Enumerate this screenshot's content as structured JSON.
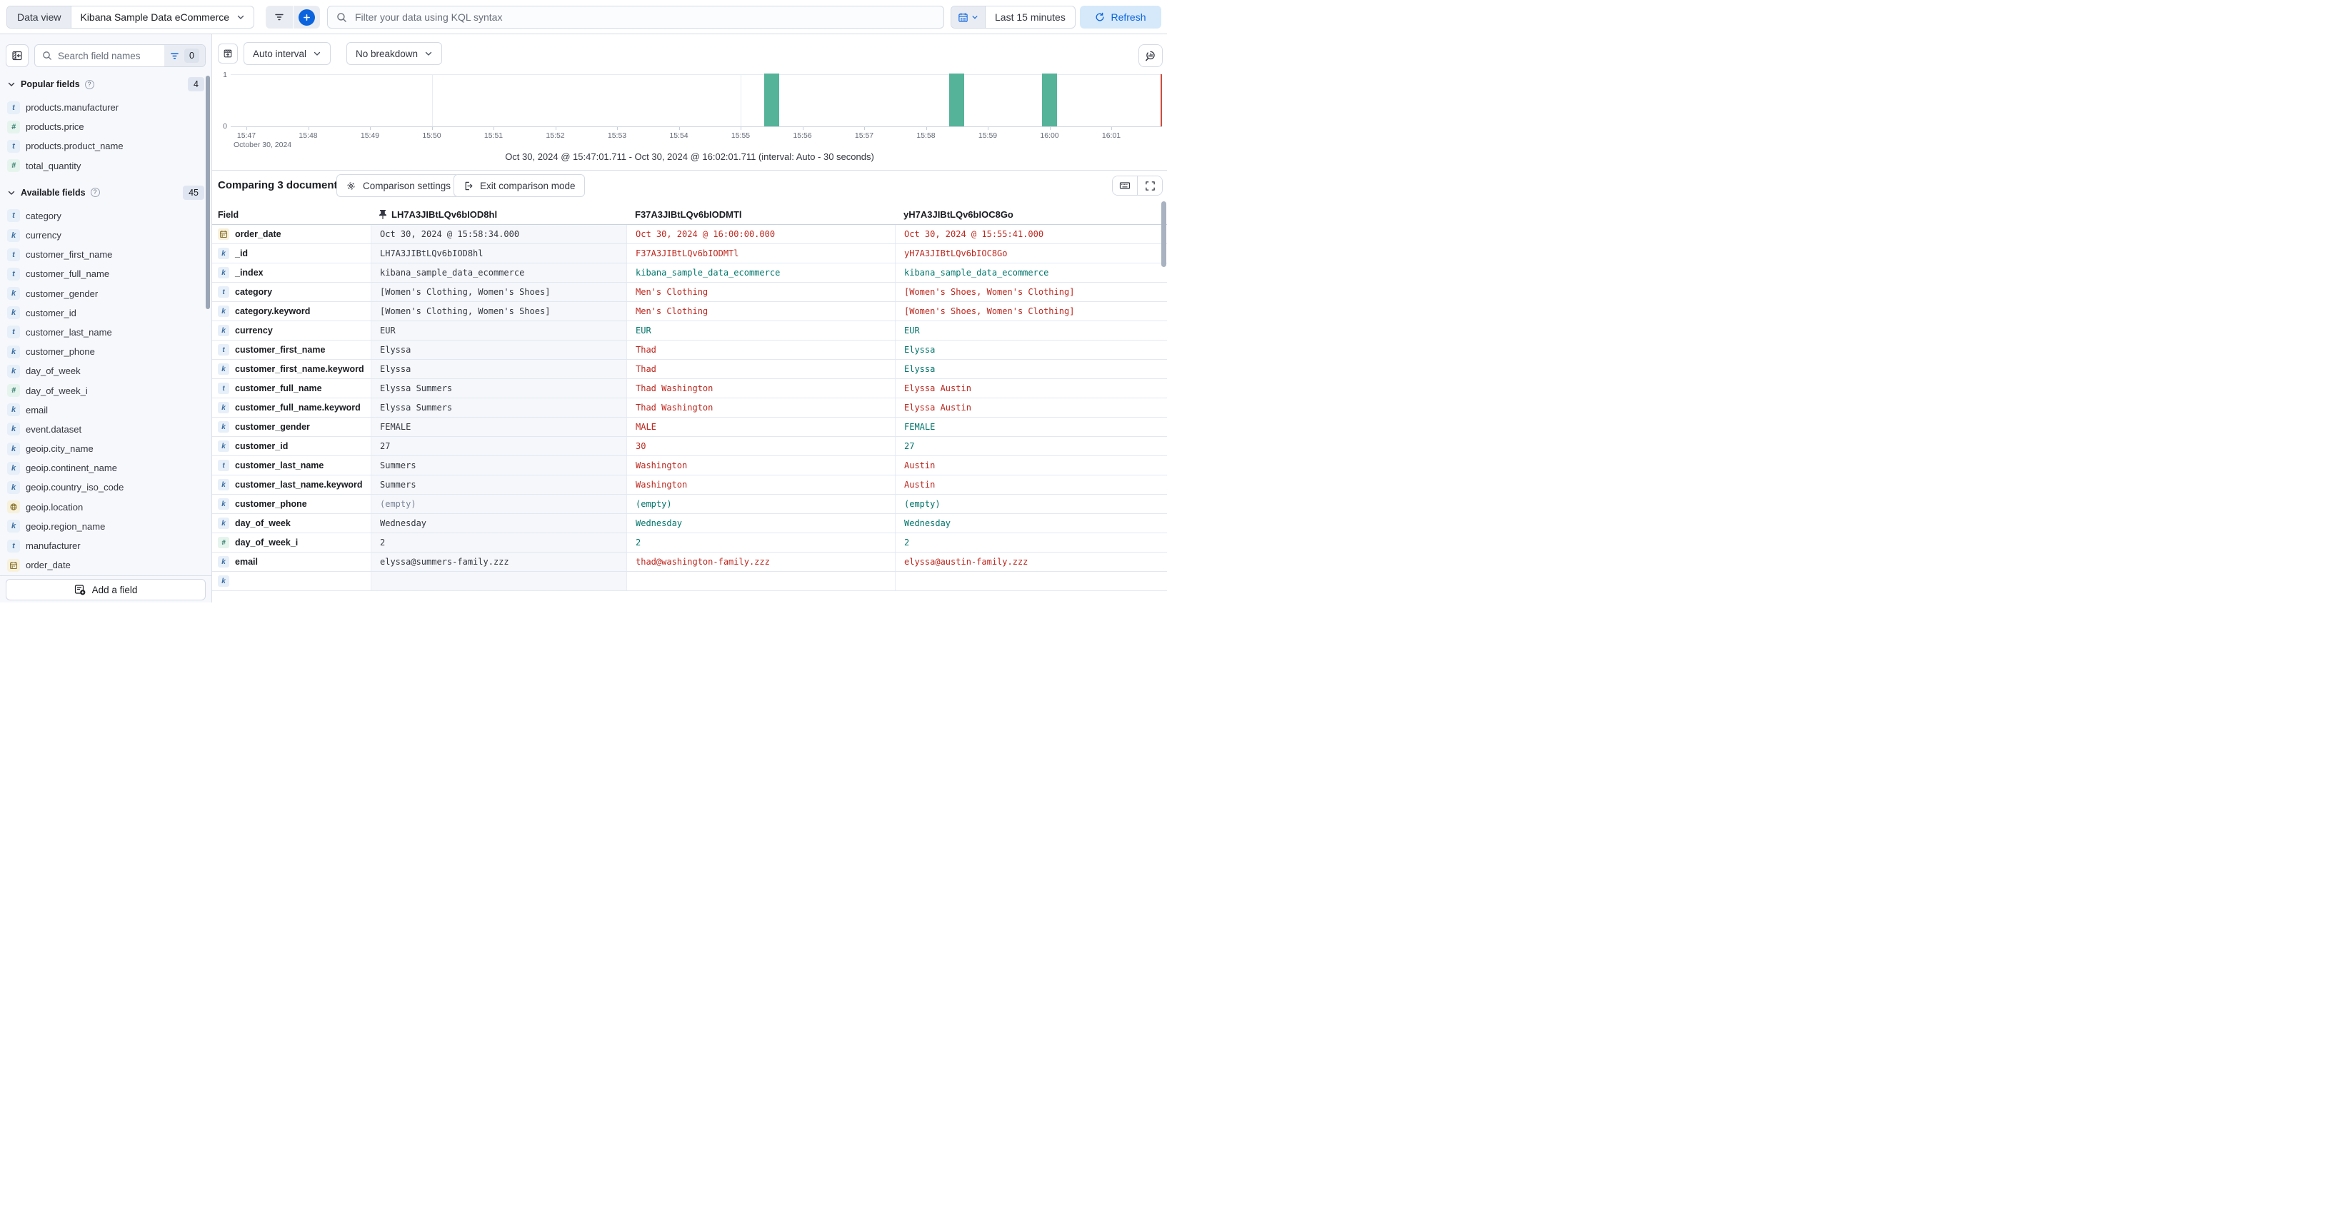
{
  "topbar": {
    "data_view_label": "Data view",
    "data_view_value": "Kibana Sample Data eCommerce",
    "kql_placeholder": "Filter your data using KQL syntax",
    "time_range_value": "Last 15 minutes",
    "refresh_label": "Refresh"
  },
  "sidebar": {
    "search_placeholder": "Search field names",
    "filter_count": "0",
    "popular_title": "Popular fields",
    "popular_count": "4",
    "available_title": "Available fields",
    "available_count": "45",
    "popular_items": [
      {
        "type": "t",
        "name": "products.manufacturer"
      },
      {
        "type": "n",
        "name": "products.price"
      },
      {
        "type": "t",
        "name": "products.product_name"
      },
      {
        "type": "n",
        "name": "total_quantity"
      }
    ],
    "available_items": [
      {
        "type": "t",
        "name": "category"
      },
      {
        "type": "k",
        "name": "currency"
      },
      {
        "type": "t",
        "name": "customer_first_name"
      },
      {
        "type": "t",
        "name": "customer_full_name"
      },
      {
        "type": "k",
        "name": "customer_gender"
      },
      {
        "type": "k",
        "name": "customer_id"
      },
      {
        "type": "t",
        "name": "customer_last_name"
      },
      {
        "type": "k",
        "name": "customer_phone"
      },
      {
        "type": "k",
        "name": "day_of_week"
      },
      {
        "type": "n",
        "name": "day_of_week_i"
      },
      {
        "type": "k",
        "name": "email"
      },
      {
        "type": "k",
        "name": "event.dataset"
      },
      {
        "type": "k",
        "name": "geoip.city_name"
      },
      {
        "type": "k",
        "name": "geoip.continent_name"
      },
      {
        "type": "k",
        "name": "geoip.country_iso_code"
      },
      {
        "type": "geo",
        "name": "geoip.location"
      },
      {
        "type": "k",
        "name": "geoip.region_name"
      },
      {
        "type": "t",
        "name": "manufacturer"
      },
      {
        "type": "date",
        "name": "order_date"
      },
      {
        "type": "k",
        "name": ""
      }
    ],
    "add_field_label": "Add a field"
  },
  "chart": {
    "interval_label": "Auto interval",
    "breakdown_label": "No breakdown",
    "time_note": "Oct 30, 2024 @ 15:47:01.711 - Oct 30, 2024 @ 16:02:01.711 (interval: Auto - 30 seconds)"
  },
  "chart_data": {
    "type": "bar",
    "x_axis_date_label": "October 30, 2024",
    "x_tick_labels": [
      "15:47",
      "15:48",
      "15:49",
      "15:50",
      "15:51",
      "15:52",
      "15:53",
      "15:54",
      "15:55",
      "15:56",
      "15:57",
      "15:58",
      "15:59",
      "16:00",
      "16:01"
    ],
    "x_gridline_minutes": [
      3,
      8,
      13
    ],
    "ylim": [
      0,
      1
    ],
    "y_tick_labels": [
      "0",
      "1"
    ],
    "bar_color": "#54B399",
    "interval": "30 seconds",
    "buckets": [
      {
        "time": "15:55:30",
        "count": 1
      },
      {
        "time": "15:58:30",
        "count": 1
      },
      {
        "time": "16:00:00",
        "count": 1
      }
    ]
  },
  "comparison": {
    "title": "Comparing 3 documents",
    "settings_label": "Comparison settings",
    "exit_label": "Exit comparison mode",
    "field_header": "Field",
    "doc_headers": [
      "LH7A3JIBtLQv6bIOD8hl",
      "F37A3JIBtLQv6bIODMTl",
      "yH7A3JIBtLQv6bIOC8Go"
    ],
    "diff_colors": {
      "match": "#00756B",
      "diff": "#BD271E",
      "base": "#343741",
      "empty": "#7A8499"
    },
    "rows": [
      {
        "field": "order_date",
        "type": "date",
        "v1": "Oct 30, 2024 @ 15:58:34.000",
        "v1_tone": "base",
        "v2": "Oct 30, 2024 @ 16:00:00.000",
        "v2_tone": "diff",
        "v3": "Oct 30, 2024 @ 15:55:41.000",
        "v3_tone": "diff"
      },
      {
        "field": "_id",
        "type": "k",
        "v1": "LH7A3JIBtLQv6bIOD8hl",
        "v1_tone": "base",
        "v2": "F37A3JIBtLQv6bIODMTl",
        "v2_tone": "diff",
        "v3": "yH7A3JIBtLQv6bIOC8Go",
        "v3_tone": "diff"
      },
      {
        "field": "_index",
        "type": "k",
        "v1": "kibana_sample_data_ecommerce",
        "v1_tone": "base",
        "v2": "kibana_sample_data_ecommerce",
        "v2_tone": "match",
        "v3": "kibana_sample_data_ecommerce",
        "v3_tone": "match"
      },
      {
        "field": "category",
        "type": "t",
        "v1": "[Women's Clothing, Women's Shoes]",
        "v1_tone": "base",
        "v2": "Men's Clothing",
        "v2_tone": "diff",
        "v3": "[Women's Shoes, Women's Clothing]",
        "v3_tone": "diff"
      },
      {
        "field": "category.keyword",
        "type": "k",
        "v1": "[Women's Clothing, Women's Shoes]",
        "v1_tone": "base",
        "v2": "Men's Clothing",
        "v2_tone": "diff",
        "v3": "[Women's Shoes, Women's Clothing]",
        "v3_tone": "diff"
      },
      {
        "field": "currency",
        "type": "k",
        "v1": "EUR",
        "v1_tone": "base",
        "v2": "EUR",
        "v2_tone": "match",
        "v3": "EUR",
        "v3_tone": "match"
      },
      {
        "field": "customer_first_name",
        "type": "t",
        "v1": "Elyssa",
        "v1_tone": "base",
        "v2": "Thad",
        "v2_tone": "diff",
        "v3": "Elyssa",
        "v3_tone": "match"
      },
      {
        "field": "customer_first_name.keyword",
        "type": "k",
        "v1": "Elyssa",
        "v1_tone": "base",
        "v2": "Thad",
        "v2_tone": "diff",
        "v3": "Elyssa",
        "v3_tone": "match"
      },
      {
        "field": "customer_full_name",
        "type": "t",
        "v1": "Elyssa Summers",
        "v1_tone": "base",
        "v2": "Thad Washington",
        "v2_tone": "diff",
        "v3": "Elyssa Austin",
        "v3_tone": "diff"
      },
      {
        "field": "customer_full_name.keyword",
        "type": "k",
        "v1": "Elyssa Summers",
        "v1_tone": "base",
        "v2": "Thad Washington",
        "v2_tone": "diff",
        "v3": "Elyssa Austin",
        "v3_tone": "diff"
      },
      {
        "field": "customer_gender",
        "type": "k",
        "v1": "FEMALE",
        "v1_tone": "base",
        "v2": "MALE",
        "v2_tone": "diff",
        "v3": "FEMALE",
        "v3_tone": "match"
      },
      {
        "field": "customer_id",
        "type": "k",
        "v1": "27",
        "v1_tone": "base",
        "v2": "30",
        "v2_tone": "diff",
        "v3": "27",
        "v3_tone": "match"
      },
      {
        "field": "customer_last_name",
        "type": "t",
        "v1": "Summers",
        "v1_tone": "base",
        "v2": "Washington",
        "v2_tone": "diff",
        "v3": "Austin",
        "v3_tone": "diff"
      },
      {
        "field": "customer_last_name.keyword",
        "type": "k",
        "v1": "Summers",
        "v1_tone": "base",
        "v2": "Washington",
        "v2_tone": "diff",
        "v3": "Austin",
        "v3_tone": "diff"
      },
      {
        "field": "customer_phone",
        "type": "k",
        "v1": "(empty)",
        "v1_tone": "empty",
        "v2": "(empty)",
        "v2_tone": "match",
        "v3": "(empty)",
        "v3_tone": "match"
      },
      {
        "field": "day_of_week",
        "type": "k",
        "v1": "Wednesday",
        "v1_tone": "base",
        "v2": "Wednesday",
        "v2_tone": "match",
        "v3": "Wednesday",
        "v3_tone": "match"
      },
      {
        "field": "day_of_week_i",
        "type": "n",
        "v1": "2",
        "v1_tone": "base",
        "v2": "2",
        "v2_tone": "match",
        "v3": "2",
        "v3_tone": "match"
      },
      {
        "field": "email",
        "type": "k",
        "v1": "elyssa@summers-family.zzz",
        "v1_tone": "base",
        "v2": "thad@washington-family.zzz",
        "v2_tone": "diff",
        "v3": "elyssa@austin-family.zzz",
        "v3_tone": "diff"
      },
      {
        "field": "",
        "type": "k",
        "v1": "",
        "v1_tone": "base",
        "v2": "",
        "v2_tone": "base",
        "v3": "",
        "v3_tone": "base"
      }
    ]
  }
}
